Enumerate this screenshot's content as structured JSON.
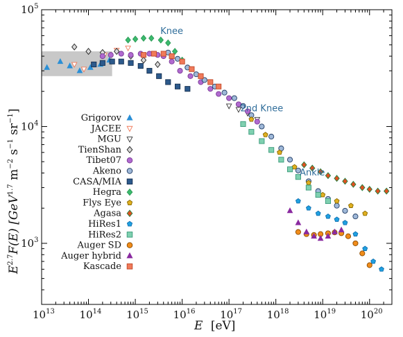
{
  "chart_data": {
    "type": "scatter",
    "x_axis": {
      "label": "E",
      "unit": "[eV]",
      "scale": "log",
      "range": [
        10000000000000.0,
        3e+20
      ],
      "ticks": [
        {
          "base": "10",
          "exp": "13",
          "value": 10000000000000.0
        },
        {
          "base": "10",
          "exp": "14",
          "value": 100000000000000.0
        },
        {
          "base": "10",
          "exp": "15",
          "value": 1000000000000000.0
        },
        {
          "base": "10",
          "exp": "16",
          "value": 1e+16
        },
        {
          "base": "10",
          "exp": "17",
          "value": 1e+17
        },
        {
          "base": "10",
          "exp": "18",
          "value": 1e+18
        },
        {
          "base": "10",
          "exp": "19",
          "value": 1e+19
        },
        {
          "base": "10",
          "exp": "20",
          "value": 1e+20
        }
      ]
    },
    "y_axis": {
      "label_main": "E",
      "label_exp": "2.7",
      "label_mid": "F(E) [GeV",
      "label_unit_exp": "1.7",
      "label_tail": " m",
      "label_m_exp": "−2",
      "label_s": " s",
      "label_s_exp": "−1",
      "label_sr": " sr",
      "label_sr_exp": "−1",
      "label_close": "]",
      "scale": "log",
      "range": [
        300,
        100000
      ],
      "ticks": [
        {
          "base": "10",
          "exp": "3",
          "value": 1000
        },
        {
          "base": "10",
          "exp": "4",
          "value": 10000
        },
        {
          "base": "10",
          "exp": "5",
          "value": 100000
        }
      ]
    },
    "band": {
      "x": [
        10000000000000.0,
        320000000000000.0
      ],
      "y": [
        27000,
        44000
      ],
      "color": "#c8c8c8"
    },
    "annotations": [
      {
        "text": "Knee",
        "x": 6000000000000000.0,
        "y": 62000
      },
      {
        "text": "2nd Knee",
        "x": 5e+17,
        "y": 13500
      },
      {
        "text": "Ankle",
        "x": 6e+18,
        "y": 3800
      }
    ],
    "series": [
      {
        "name": "Grigorov",
        "marker": "triangle-up",
        "color": "#2a8fd6",
        "stroke": "#2a8fd6",
        "points": [
          [
            13000000000000.0,
            32000
          ],
          [
            25000000000000.0,
            36000
          ],
          [
            40000000000000.0,
            33000
          ],
          [
            65000000000000.0,
            30000
          ],
          [
            110000000000000.0,
            32000
          ],
          [
            180000000000000.0,
            34000
          ],
          [
            280000000000000.0,
            37000
          ]
        ]
      },
      {
        "name": "JACEE",
        "marker": "triangle-down",
        "color": "#ffffff",
        "stroke": "#f07a5a",
        "points": [
          [
            50000000000000.0,
            34000
          ],
          [
            80000000000000.0,
            31000
          ],
          [
            130000000000000.0,
            34000
          ],
          [
            220000000000000.0,
            41000
          ],
          [
            400000000000000.0,
            45000
          ],
          [
            700000000000000.0,
            47000
          ]
        ]
      },
      {
        "name": "MGU",
        "marker": "triangle-down",
        "color": "#ffffff",
        "stroke": "#333333",
        "points": [
          [
            1e+17,
            15000
          ],
          [
            1.6e+17,
            14000
          ],
          [
            2.5e+17,
            13000
          ],
          [
            4e+17,
            11500
          ]
        ]
      },
      {
        "name": "TienShan",
        "marker": "diamond",
        "color": "#d8d8d8",
        "stroke": "#222222",
        "points": [
          [
            50000000000000.0,
            48000
          ],
          [
            100000000000000.0,
            44000
          ],
          [
            200000000000000.0,
            43000
          ],
          [
            400000000000000.0,
            44000
          ],
          [
            800000000000000.0,
            40000
          ],
          [
            1500000000000000.0,
            37000
          ],
          [
            3000000000000000.0,
            34000
          ]
        ]
      },
      {
        "name": "Tibet07",
        "marker": "circle",
        "color": "#b06ad0",
        "stroke": "#7a3a95",
        "points": [
          [
            200000000000000.0,
            40000
          ],
          [
            300000000000000.0,
            41000
          ],
          [
            500000000000000.0,
            42000
          ],
          [
            800000000000000.0,
            41000
          ],
          [
            1300000000000000.0,
            42000
          ],
          [
            2000000000000000.0,
            42000
          ],
          [
            3000000000000000.0,
            41000
          ],
          [
            4000000000000000.0,
            40000
          ],
          [
            6000000000000000.0,
            36000
          ],
          [
            9000000000000000.0,
            30000
          ],
          [
            1.5e+16,
            27000
          ],
          [
            2.5e+16,
            24000
          ],
          [
            4e+16,
            21000
          ],
          [
            6e+16,
            19000
          ],
          [
            1e+17,
            17500
          ],
          [
            1.6e+17,
            15500
          ],
          [
            2.5e+17,
            13500
          ],
          [
            4e+17,
            11000
          ]
        ]
      },
      {
        "name": "Akeno",
        "marker": "circle",
        "color": "#9fb8d8",
        "stroke": "#1f3b63",
        "points": [
          [
            5000000000000000.0,
            43000
          ],
          [
            8000000000000000.0,
            38000
          ],
          [
            1.3e+16,
            32000
          ],
          [
            2e+16,
            28000
          ],
          [
            3e+16,
            25000
          ],
          [
            5e+16,
            22000
          ],
          [
            8e+16,
            19500
          ],
          [
            1.3e+17,
            17500
          ],
          [
            2e+17,
            15000
          ],
          [
            3e+17,
            12500
          ],
          [
            5e+17,
            10000
          ],
          [
            8e+17,
            8200
          ],
          [
            1.3e+18,
            6500
          ],
          [
            2e+18,
            5200
          ],
          [
            3e+18,
            4200
          ],
          [
            5e+18,
            3400
          ],
          [
            8e+18,
            2800
          ],
          [
            1.3e+19,
            2400
          ],
          [
            2e+19,
            2100
          ],
          [
            3e+19,
            1900
          ],
          [
            5e+19,
            1700
          ]
        ]
      },
      {
        "name": "CASA/MIA",
        "marker": "square",
        "color": "#2d5a8c",
        "stroke": "#163050",
        "points": [
          [
            130000000000000.0,
            34000
          ],
          [
            200000000000000.0,
            35000
          ],
          [
            320000000000000.0,
            36000
          ],
          [
            500000000000000.0,
            36000
          ],
          [
            800000000000000.0,
            35000
          ],
          [
            1300000000000000.0,
            33000
          ],
          [
            2000000000000000.0,
            30000
          ],
          [
            3200000000000000.0,
            27000
          ],
          [
            5000000000000000.0,
            24000
          ],
          [
            8000000000000000.0,
            22000
          ],
          [
            1.3e+16,
            21000
          ]
        ]
      },
      {
        "name": "Hegra",
        "marker": "diamond",
        "color": "#3cba6e",
        "stroke": "#2a9a55",
        "points": [
          [
            700000000000000.0,
            55000
          ],
          [
            1000000000000000.0,
            56000
          ],
          [
            1500000000000000.0,
            57000
          ],
          [
            2200000000000000.0,
            57000
          ],
          [
            3500000000000000.0,
            55000
          ],
          [
            5000000000000000.0,
            52000
          ],
          [
            7000000000000000.0,
            44000
          ],
          [
            1e+16,
            37000
          ]
        ]
      },
      {
        "name": "Flys Eye",
        "marker": "pentagon",
        "color": "#e0b020",
        "stroke": "#8a6a00",
        "points": [
          [
            3e+17,
            11500
          ],
          [
            6e+17,
            8500
          ],
          [
            1.2e+18,
            6000
          ],
          [
            2.5e+18,
            4500
          ],
          [
            5e+18,
            3300
          ],
          [
            1e+19,
            2600
          ],
          [
            2e+19,
            2300
          ],
          [
            4e+19,
            2100
          ],
          [
            8e+19,
            1800
          ]
        ]
      },
      {
        "name": "Agasa",
        "marker": "diamond",
        "color": "#e05020",
        "stroke": "#208040",
        "points": [
          [
            4e+18,
            4700
          ],
          [
            6e+18,
            4400
          ],
          [
            9e+18,
            4100
          ],
          [
            1.3e+19,
            3800
          ],
          [
            2e+19,
            3600
          ],
          [
            3e+19,
            3400
          ],
          [
            4.5e+19,
            3200
          ],
          [
            7e+19,
            3000
          ],
          [
            1e+20,
            2900
          ],
          [
            1.5e+20,
            2800
          ],
          [
            2.3e+20,
            2800
          ]
        ]
      },
      {
        "name": "HiRes1",
        "marker": "pentagon",
        "color": "#20a0e0",
        "stroke": "#1070b0",
        "points": [
          [
            3e+18,
            2300
          ],
          [
            5e+18,
            2000
          ],
          [
            8e+18,
            1800
          ],
          [
            1.3e+19,
            1700
          ],
          [
            2e+19,
            1600
          ],
          [
            3e+19,
            1500
          ],
          [
            5e+19,
            1200
          ],
          [
            8e+19,
            900
          ],
          [
            1.2e+20,
            700
          ],
          [
            1.8e+20,
            600
          ]
        ]
      },
      {
        "name": "HiRes2",
        "marker": "square",
        "color": "#7fd0b0",
        "stroke": "#3a9a7a",
        "points": [
          [
            2e+17,
            10500
          ],
          [
            3e+17,
            9000
          ],
          [
            5e+17,
            7500
          ],
          [
            8e+17,
            6300
          ],
          [
            1.3e+18,
            5200
          ],
          [
            2e+18,
            4300
          ],
          [
            3e+18,
            3700
          ],
          [
            5e+18,
            3000
          ],
          [
            8e+18,
            2600
          ],
          [
            1.3e+19,
            2300
          ]
        ]
      },
      {
        "name": "Auger SD",
        "marker": "circle",
        "color": "#f08c1a",
        "stroke": "#8a4a00",
        "points": [
          [
            3e+18,
            1250
          ],
          [
            4.5e+18,
            1200
          ],
          [
            6.5e+18,
            1180
          ],
          [
            9e+18,
            1200
          ],
          [
            1.3e+19,
            1220
          ],
          [
            1.8e+19,
            1240
          ],
          [
            2.5e+19,
            1220
          ],
          [
            3.5e+19,
            1150
          ],
          [
            5e+19,
            1000
          ],
          [
            7e+19,
            820
          ],
          [
            1e+20,
            650
          ]
        ]
      },
      {
        "name": "Auger hybrid",
        "marker": "triangle-up",
        "color": "#8a2aa0",
        "stroke": "#8a2aa0",
        "points": [
          [
            2e+18,
            1900
          ],
          [
            3e+18,
            1500
          ],
          [
            4.5e+18,
            1250
          ],
          [
            6.5e+18,
            1150
          ],
          [
            9e+18,
            1100
          ],
          [
            1.3e+19,
            1150
          ],
          [
            1.8e+19,
            1250
          ],
          [
            2.5e+19,
            1300
          ]
        ]
      },
      {
        "name": "Kascade",
        "marker": "square",
        "color": "#f07a5a",
        "stroke": "#c04a2a",
        "points": [
          [
            1500000000000000.0,
            41000
          ],
          [
            2500000000000000.0,
            42000
          ],
          [
            4000000000000000.0,
            42000
          ],
          [
            6000000000000000.0,
            40000
          ],
          [
            1e+16,
            36000
          ],
          [
            1.6e+16,
            31000
          ],
          [
            2.5e+16,
            27000
          ],
          [
            4e+16,
            24000
          ],
          [
            6e+16,
            22000
          ]
        ]
      }
    ],
    "legend": {
      "position": "left-center"
    }
  }
}
